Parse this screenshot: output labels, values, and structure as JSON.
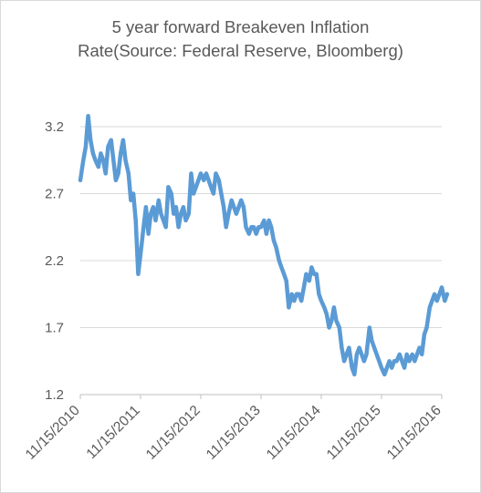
{
  "chart_data": {
    "type": "line",
    "title_line1": "5 year forward Breakeven  Inflation",
    "title_line2": "Rate(Source: Federal Reserve, Bloomberg)",
    "xlabel": "",
    "ylabel": "",
    "ylim": [
      1.2,
      3.3
    ],
    "yticks": [
      "1.2",
      "1.7",
      "2.2",
      "2.7",
      "3.2"
    ],
    "ytick_values": [
      1.2,
      1.7,
      2.2,
      2.7,
      3.2
    ],
    "xticks": [
      "11/15/2010",
      "11/15/2011",
      "11/15/2012",
      "11/15/2013",
      "11/15/2014",
      "11/15/2015",
      "11/15/2016"
    ],
    "grid": "horizontal",
    "legend": "none",
    "line_color": "#5b9bd5",
    "series": [
      {
        "x": [
          2010.87,
          2010.92,
          2010.96,
          2011.0,
          2011.04,
          2011.08,
          2011.12,
          2011.17,
          2011.21,
          2011.25,
          2011.29,
          2011.33,
          2011.38,
          2011.42,
          2011.46,
          2011.5,
          2011.54,
          2011.58,
          2011.62,
          2011.67,
          2011.71,
          2011.75,
          2011.79,
          2011.83,
          2011.87,
          2011.92,
          2011.96,
          2012.0,
          2012.04,
          2012.08,
          2012.12,
          2012.17,
          2012.21,
          2012.25,
          2012.29,
          2012.33,
          2012.38,
          2012.42,
          2012.46,
          2012.5,
          2012.54,
          2012.58,
          2012.62,
          2012.67,
          2012.71,
          2012.75,
          2012.79,
          2012.83,
          2012.87,
          2012.92,
          2012.96,
          2013.0,
          2013.04,
          2013.08,
          2013.12,
          2013.17,
          2013.21,
          2013.25,
          2013.29,
          2013.33,
          2013.38,
          2013.42,
          2013.46,
          2013.5,
          2013.54,
          2013.58,
          2013.62,
          2013.67,
          2013.71,
          2013.75,
          2013.79,
          2013.83,
          2013.87,
          2013.92,
          2013.96,
          2014.0,
          2014.04,
          2014.08,
          2014.12,
          2014.17,
          2014.21,
          2014.25,
          2014.29,
          2014.33,
          2014.38,
          2014.42,
          2014.46,
          2014.5,
          2014.54,
          2014.58,
          2014.62,
          2014.67,
          2014.71,
          2014.75,
          2014.79,
          2014.83,
          2014.87,
          2014.92,
          2014.96,
          2015.0,
          2015.04,
          2015.08,
          2015.12,
          2015.17,
          2015.21,
          2015.25,
          2015.29,
          2015.33,
          2015.38,
          2015.42,
          2015.46,
          2015.5,
          2015.54,
          2015.58,
          2015.62,
          2015.67,
          2015.71,
          2015.75,
          2015.79,
          2015.83,
          2015.87,
          2015.92,
          2015.96,
          2016.0,
          2016.04,
          2016.08,
          2016.12,
          2016.17,
          2016.21,
          2016.25,
          2016.29,
          2016.33,
          2016.38,
          2016.42,
          2016.46,
          2016.5,
          2016.54,
          2016.58,
          2016.62,
          2016.67,
          2016.71,
          2016.75,
          2016.79,
          2016.83,
          2016.87,
          2016.92,
          2016.96
        ],
        "y": [
          2.8,
          2.95,
          3.05,
          3.28,
          3.1,
          3.0,
          2.95,
          2.9,
          3.0,
          2.95,
          2.85,
          3.05,
          3.1,
          2.95,
          2.8,
          2.85,
          3.0,
          3.1,
          2.95,
          2.85,
          2.65,
          2.7,
          2.5,
          2.1,
          2.25,
          2.45,
          2.6,
          2.4,
          2.55,
          2.6,
          2.5,
          2.65,
          2.55,
          2.5,
          2.45,
          2.75,
          2.7,
          2.55,
          2.6,
          2.45,
          2.55,
          2.6,
          2.5,
          2.55,
          2.85,
          2.7,
          2.75,
          2.8,
          2.85,
          2.8,
          2.85,
          2.8,
          2.75,
          2.7,
          2.85,
          2.8,
          2.7,
          2.6,
          2.45,
          2.55,
          2.65,
          2.6,
          2.55,
          2.6,
          2.65,
          2.6,
          2.45,
          2.4,
          2.45,
          2.45,
          2.4,
          2.45,
          2.45,
          2.5,
          2.4,
          2.5,
          2.45,
          2.35,
          2.3,
          2.2,
          2.15,
          2.1,
          2.05,
          1.85,
          1.95,
          1.9,
          1.95,
          1.95,
          1.9,
          2.0,
          2.1,
          2.05,
          2.15,
          2.1,
          2.1,
          1.95,
          1.9,
          1.85,
          1.8,
          1.7,
          1.75,
          1.85,
          1.75,
          1.7,
          1.55,
          1.45,
          1.5,
          1.55,
          1.4,
          1.35,
          1.5,
          1.55,
          1.5,
          1.45,
          1.5,
          1.7,
          1.6,
          1.55,
          1.5,
          1.45,
          1.4,
          1.35,
          1.4,
          1.45,
          1.4,
          1.45,
          1.45,
          1.5,
          1.45,
          1.4,
          1.5,
          1.45,
          1.5,
          1.45,
          1.5,
          1.55,
          1.5,
          1.65,
          1.7,
          1.85,
          1.9,
          1.95,
          1.9,
          1.95,
          2.0,
          1.9,
          1.95
        ]
      }
    ]
  }
}
